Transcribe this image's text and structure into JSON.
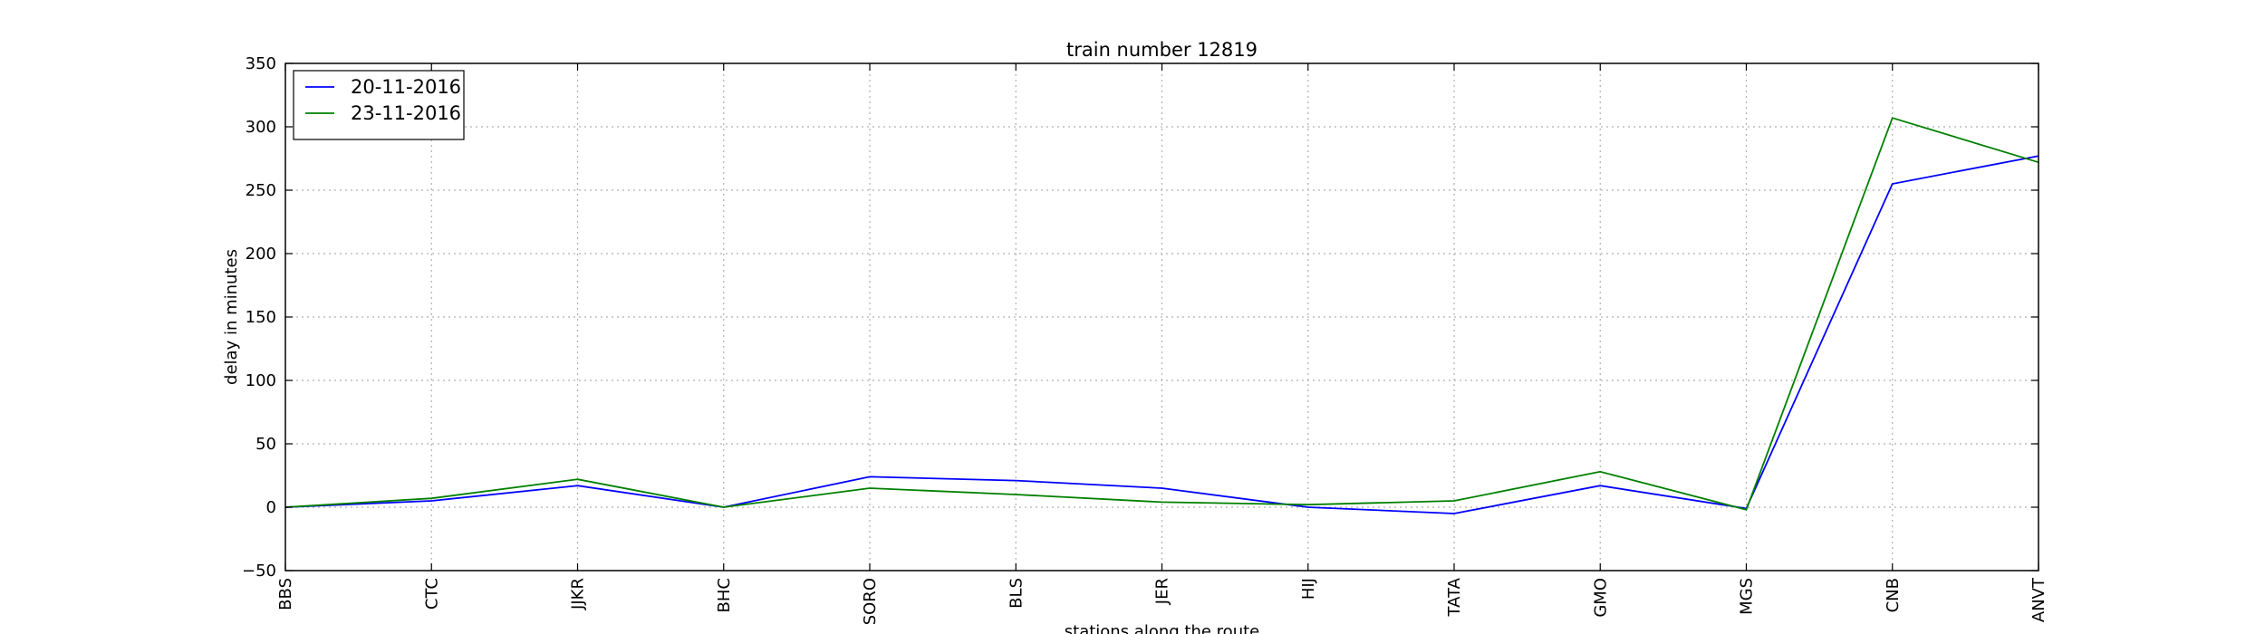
{
  "chart_data": {
    "type": "line",
    "title": "train number 12819",
    "xlabel": "stations along the route",
    "ylabel": "delay in minutes",
    "categories": [
      "BBS",
      "CTC",
      "JJKR",
      "BHC",
      "SORO",
      "BLS",
      "JER",
      "HIJ",
      "TATA",
      "GMO",
      "MGS",
      "CNB",
      "ANVT"
    ],
    "ylim": [
      -50,
      350
    ],
    "yticks": [
      -50,
      0,
      50,
      100,
      150,
      200,
      250,
      300,
      350
    ],
    "grid": true,
    "legend_position": "top-left",
    "series": [
      {
        "name": "20-11-2016",
        "color": "#0000ff",
        "values": [
          0,
          5,
          17,
          0,
          24,
          21,
          15,
          0,
          -5,
          17,
          -1,
          255,
          277
        ]
      },
      {
        "name": "23-11-2016",
        "color": "#008000",
        "values": [
          0,
          7,
          22,
          0,
          15,
          10,
          4,
          2,
          5,
          28,
          -2,
          307,
          272
        ]
      }
    ]
  }
}
